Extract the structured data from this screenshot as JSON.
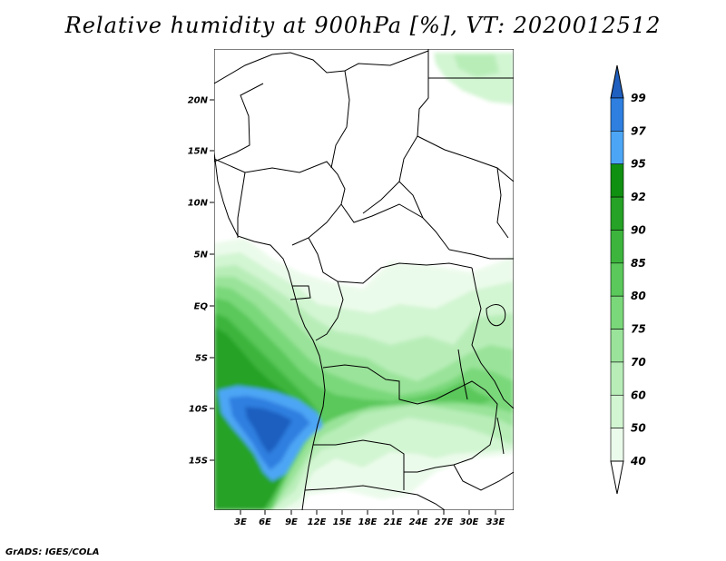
{
  "title": "Relative humidity at 900hPa [%], VT: 2020012512",
  "credit": "GrADS: IGES/COLA",
  "map": {
    "variable": "Relative humidity",
    "level": "900hPa",
    "units": "%",
    "valid_time": "2020012512",
    "lon_range": [
      0,
      34
    ],
    "lat_range": [
      -19.5,
      24.5
    ],
    "lat_ticks": [
      "20N",
      "15N",
      "10N",
      "5N",
      "EQ",
      "5S",
      "10S",
      "15S"
    ],
    "lon_ticks": [
      "3E",
      "6E",
      "9E",
      "12E",
      "15E",
      "18E",
      "21E",
      "24E",
      "27E",
      "30E",
      "33E"
    ]
  },
  "colorbar": {
    "levels": [
      "99",
      "97",
      "95",
      "92",
      "90",
      "85",
      "80",
      "75",
      "70",
      "60",
      "50",
      "40"
    ],
    "colors": [
      "#1f5fbf",
      "#2e7fe0",
      "#4da6f5",
      "#109010",
      "#26a226",
      "#3db53d",
      "#5ac85a",
      "#7ad87a",
      "#9ae39a",
      "#b8edb8",
      "#d2f5d2",
      "#ebfbeb"
    ]
  }
}
